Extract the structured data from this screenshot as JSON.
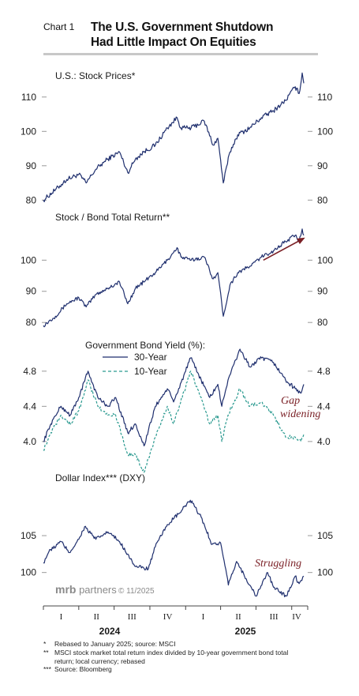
{
  "header": {
    "chart_label": "Chart 1",
    "title_line1": "The U.S. Government Shutdown",
    "title_line2": "Had Little Impact On Equities"
  },
  "brand": {
    "name_bold": "mrb",
    "name_rest": " partners",
    "date": "© 11/2025"
  },
  "timeline": {
    "quarters": [
      "I",
      "II",
      "III",
      "IV",
      "I",
      "II",
      "III",
      "IV"
    ],
    "years": [
      "2024",
      "2025"
    ]
  },
  "footnotes": [
    {
      "mark": "*",
      "text": "Rebased to January 2025; source: MSCI"
    },
    {
      "mark": "**",
      "text": "MSCI stock market total return index divided by 10-year government bond total return; local currency; rebased"
    },
    {
      "mark": "***",
      "text": "Source: Bloomberg"
    }
  ],
  "colors": {
    "line": "#1f2f6e",
    "line_10y": "#2b9a90",
    "annotation": "#7a1f25",
    "rule": "#c8c8c8"
  },
  "chart_data": [
    {
      "type": "line",
      "title": "U.S.:  Stock Prices*",
      "x_range": [
        "2024-01-01",
        "2025-11-01"
      ],
      "ylim": [
        78,
        118
      ],
      "yticks": [
        80,
        90,
        100,
        110
      ],
      "ytick_labels": [
        "80",
        "90",
        "100",
        "110"
      ],
      "series": [
        {
          "x": [
            "2024-01-01",
            "2024-02-01",
            "2024-03-01",
            "2024-04-01",
            "2024-04-20",
            "2024-05-15",
            "2024-06-15",
            "2024-07-15",
            "2024-08-05",
            "2024-08-25",
            "2024-09-15",
            "2024-10-15",
            "2024-11-15",
            "2024-12-10",
            "2024-12-20",
            "2025-01-15",
            "2025-02-18",
            "2025-03-13",
            "2025-03-25",
            "2025-04-08",
            "2025-04-25",
            "2025-05-15",
            "2025-06-15",
            "2025-07-15",
            "2025-08-15",
            "2025-09-15",
            "2025-10-10",
            "2025-10-20",
            "2025-10-28",
            "2025-11-01"
          ],
          "values": [
            80,
            83,
            86,
            87.5,
            85,
            89,
            92,
            94,
            88,
            92,
            94,
            96,
            101,
            104,
            101,
            101,
            103,
            96,
            98,
            85,
            94,
            99,
            101,
            104,
            106,
            109,
            113,
            111,
            117,
            114
          ]
        }
      ]
    },
    {
      "type": "line",
      "title": "Stock / Bond Total Return**",
      "x_range": [
        "2024-01-01",
        "2025-11-01"
      ],
      "ylim": [
        77,
        112
      ],
      "yticks": [
        80,
        90,
        100
      ],
      "ytick_labels": [
        "80",
        "90",
        "100"
      ],
      "annotation_arrow": {
        "from": [
          "2025-07-20",
          100
        ],
        "to": [
          "2025-11-01",
          107
        ]
      },
      "series": [
        {
          "x": [
            "2024-01-01",
            "2024-02-01",
            "2024-03-01",
            "2024-04-01",
            "2024-04-20",
            "2024-05-15",
            "2024-06-15",
            "2024-07-15",
            "2024-08-05",
            "2024-08-25",
            "2024-09-15",
            "2024-10-15",
            "2024-11-15",
            "2024-12-10",
            "2024-12-20",
            "2025-01-15",
            "2025-02-18",
            "2025-03-13",
            "2025-03-25",
            "2025-04-08",
            "2025-04-25",
            "2025-05-15",
            "2025-06-15",
            "2025-07-15",
            "2025-08-15",
            "2025-09-15",
            "2025-10-10",
            "2025-10-20",
            "2025-10-28",
            "2025-11-01"
          ],
          "values": [
            79,
            82,
            86,
            88,
            85,
            89,
            91,
            93,
            86,
            91,
            93,
            96,
            100,
            104,
            101,
            100,
            101,
            94,
            96,
            82,
            92,
            96,
            98,
            101,
            103,
            106,
            108,
            106,
            110,
            108
          ]
        }
      ]
    },
    {
      "type": "line",
      "title": "Government Bond Yield (%):",
      "x_range": [
        "2024-01-01",
        "2025-11-01"
      ],
      "ylim": [
        3.72,
        5.05
      ],
      "yticks": [
        4.0,
        4.4,
        4.8
      ],
      "ytick_labels": [
        "4.0",
        "4.4",
        "4.8"
      ],
      "annotation": {
        "lines": [
          "Gap",
          "widening"
        ]
      },
      "series": [
        {
          "name": "30-Year",
          "style": "solid",
          "x": [
            "2024-01-01",
            "2024-01-20",
            "2024-02-15",
            "2024-03-10",
            "2024-04-01",
            "2024-04-25",
            "2024-05-20",
            "2024-06-15",
            "2024-07-05",
            "2024-08-05",
            "2024-08-25",
            "2024-09-16",
            "2024-10-15",
            "2024-11-15",
            "2024-12-01",
            "2025-01-14",
            "2025-02-10",
            "2025-03-04",
            "2025-03-25",
            "2025-04-04",
            "2025-04-20",
            "2025-05-21",
            "2025-06-15",
            "2025-07-15",
            "2025-08-15",
            "2025-09-15",
            "2025-10-10",
            "2025-10-25",
            "2025-11-01"
          ],
          "values": [
            4.0,
            4.2,
            4.4,
            4.3,
            4.5,
            4.8,
            4.5,
            4.4,
            4.5,
            4.1,
            4.2,
            3.95,
            4.4,
            4.6,
            4.45,
            4.95,
            4.7,
            4.5,
            4.65,
            4.4,
            4.7,
            5.05,
            4.85,
            4.95,
            4.9,
            4.7,
            4.6,
            4.55,
            4.65
          ]
        },
        {
          "name": "10-Year",
          "style": "dashed",
          "x": [
            "2024-01-01",
            "2024-01-20",
            "2024-02-15",
            "2024-03-10",
            "2024-04-01",
            "2024-04-25",
            "2024-05-20",
            "2024-06-15",
            "2024-07-05",
            "2024-08-05",
            "2024-08-25",
            "2024-09-16",
            "2024-10-15",
            "2024-11-15",
            "2024-12-01",
            "2025-01-14",
            "2025-02-10",
            "2025-03-04",
            "2025-03-25",
            "2025-04-04",
            "2025-04-20",
            "2025-05-21",
            "2025-06-15",
            "2025-07-15",
            "2025-08-15",
            "2025-09-15",
            "2025-10-10",
            "2025-10-25",
            "2025-11-01"
          ],
          "values": [
            3.9,
            4.1,
            4.3,
            4.2,
            4.35,
            4.7,
            4.4,
            4.3,
            4.3,
            3.85,
            3.85,
            3.65,
            4.05,
            4.4,
            4.2,
            4.8,
            4.5,
            4.2,
            4.3,
            4.0,
            4.3,
            4.6,
            4.4,
            4.45,
            4.3,
            4.05,
            4.05,
            4.0,
            4.08
          ]
        }
      ]
    },
    {
      "type": "line",
      "title": "Dollar Index*** (DXY)",
      "x_range": [
        "2024-01-01",
        "2025-11-01"
      ],
      "ylim": [
        96,
        111
      ],
      "yticks": [
        100,
        105
      ],
      "ytick_labels": [
        "100",
        "105"
      ],
      "annotation": {
        "lines": [
          "Struggling"
        ]
      },
      "series": [
        {
          "x": [
            "2024-01-01",
            "2024-01-15",
            "2024-02-15",
            "2024-03-08",
            "2024-04-01",
            "2024-04-16",
            "2024-05-15",
            "2024-06-15",
            "2024-07-15",
            "2024-08-05",
            "2024-08-25",
            "2024-09-27",
            "2024-10-15",
            "2024-11-15",
            "2024-12-15",
            "2025-01-13",
            "2025-02-10",
            "2025-03-10",
            "2025-04-01",
            "2025-04-21",
            "2025-05-12",
            "2025-06-15",
            "2025-07-01",
            "2025-07-31",
            "2025-08-15",
            "2025-09-17",
            "2025-10-10",
            "2025-10-20",
            "2025-11-01"
          ],
          "values": [
            101.3,
            102.8,
            104.2,
            102.7,
            104.5,
            106.2,
            104.5,
            105.5,
            104.2,
            102.5,
            100.8,
            100.5,
            103.5,
            106.5,
            108.0,
            109.8,
            107.5,
            103.8,
            104.0,
            98.3,
            101.5,
            98.3,
            96.8,
            100.0,
            98.0,
            96.8,
            99.5,
            98.5,
            99.5
          ]
        }
      ]
    }
  ]
}
